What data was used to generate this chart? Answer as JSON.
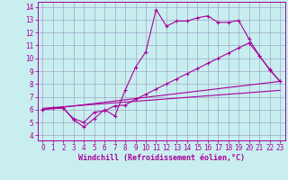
{
  "background_color": "#c8eef0",
  "grid_color": "#a0a8c8",
  "line_color": "#aa0099",
  "xlim": [
    -0.5,
    23.5
  ],
  "ylim": [
    3.6,
    14.4
  ],
  "xticks": [
    0,
    1,
    2,
    3,
    4,
    5,
    6,
    7,
    8,
    9,
    10,
    11,
    12,
    13,
    14,
    15,
    16,
    17,
    18,
    19,
    20,
    21,
    22,
    23
  ],
  "yticks": [
    4,
    5,
    6,
    7,
    8,
    9,
    10,
    11,
    12,
    13,
    14
  ],
  "xlabel": "Windchill (Refroidissement éolien,°C)",
  "series1_x": [
    0,
    1,
    2,
    3,
    4,
    5,
    6,
    7,
    8,
    9,
    10,
    11,
    12,
    13,
    14,
    15,
    16,
    17,
    18,
    19,
    20,
    21,
    22,
    23
  ],
  "series1_y": [
    6.0,
    6.1,
    6.15,
    5.2,
    4.65,
    5.3,
    6.0,
    5.5,
    7.5,
    9.3,
    10.5,
    13.8,
    12.5,
    12.9,
    12.9,
    13.15,
    13.3,
    12.8,
    12.8,
    12.95,
    11.5,
    10.2,
    9.15,
    8.2
  ],
  "series2_x": [
    0,
    1,
    2,
    3,
    4,
    5,
    6,
    7,
    8,
    9,
    10,
    11,
    12,
    13,
    14,
    15,
    16,
    17,
    18,
    19,
    20,
    21,
    22,
    23
  ],
  "series2_y": [
    6.0,
    6.1,
    6.1,
    5.3,
    5.0,
    5.8,
    5.9,
    6.3,
    6.35,
    6.8,
    7.2,
    7.6,
    8.0,
    8.4,
    8.8,
    9.2,
    9.6,
    10.0,
    10.4,
    10.8,
    11.2,
    10.2,
    9.1,
    8.2
  ],
  "line3_x": [
    0,
    23
  ],
  "line3_y": [
    6.0,
    8.2
  ],
  "line4_x": [
    0,
    23
  ],
  "line4_y": [
    6.1,
    7.5
  ],
  "tick_fontsize": 5.5,
  "xlabel_fontsize": 6.0
}
